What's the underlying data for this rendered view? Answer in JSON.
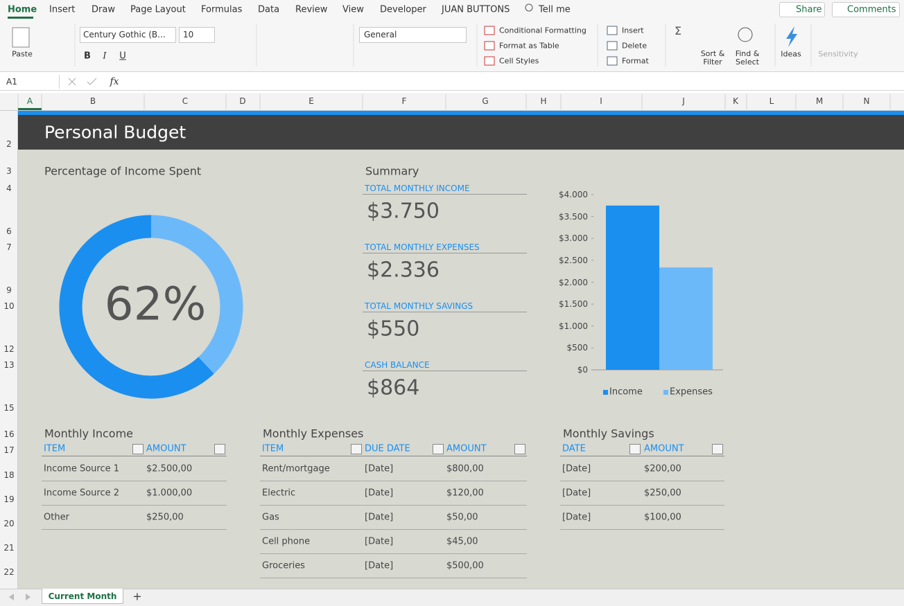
{
  "ribbon": {
    "tabs": [
      "Home",
      "Insert",
      "Draw",
      "Page Layout",
      "Formulas",
      "Data",
      "Review",
      "View",
      "Developer",
      "JUAN BUTTONS",
      "Tell me"
    ],
    "share": "Share",
    "comments": "Comments",
    "paste": "Paste",
    "font_name": "Century Gothic (B...",
    "font_size": "10",
    "bold": "B",
    "italic": "I",
    "underline": "U",
    "number_format": "General",
    "styles": [
      "Conditional Formatting",
      "Format as Table",
      "Cell Styles"
    ],
    "cells": [
      "Insert",
      "Delete",
      "Format"
    ],
    "sort_filter": "Sort & Filter",
    "find_select": "Find & Select",
    "ideas": "Ideas",
    "sensitivity": "Sensitivity"
  },
  "formula_bar": {
    "cell": "A1",
    "function_label": "fx"
  },
  "grid": {
    "columns": [
      "A",
      "B",
      "C",
      "D",
      "E",
      "F",
      "G",
      "H",
      "I",
      "J",
      "K",
      "L",
      "M",
      "N"
    ],
    "rows": [
      "2",
      "3",
      "4",
      "6",
      "7",
      "9",
      "10",
      "12",
      "13",
      "15",
      "16",
      "17",
      "18",
      "19",
      "20",
      "21",
      "22"
    ]
  },
  "sheet": {
    "title": "Personal Budget",
    "spent_chart": {
      "type": "donut",
      "title": "Percentage of Income Spent",
      "values": [
        62
      ],
      "value_labels": [
        "62%"
      ],
      "color": "#1a8ff0",
      "track_color": "#6cb9fa"
    },
    "summary": {
      "title": "Summary",
      "items": [
        {
          "label": "TOTAL MONTHLY INCOME",
          "value": "$3.750"
        },
        {
          "label": "TOTAL MONTHLY EXPENSES",
          "value": "$2.336"
        },
        {
          "label": "TOTAL MONTHLY SAVINGS",
          "value": "$550"
        },
        {
          "label": "CASH BALANCE",
          "value": "$864"
        }
      ]
    },
    "budget_chart": {
      "type": "bar",
      "series": [
        {
          "name": "Income",
          "color": "#1a8ff0",
          "values": [
            3750
          ]
        },
        {
          "name": "Expenses",
          "color": "#6cb9fa",
          "values": [
            2336
          ]
        }
      ],
      "ylim": [
        0,
        4000
      ],
      "yticks": [
        {
          "value": 0,
          "label": "$0"
        },
        {
          "value": 500,
          "label": "$500"
        },
        {
          "value": 1000,
          "label": "$1.000"
        },
        {
          "value": 1500,
          "label": "$1.500"
        },
        {
          "value": 2000,
          "label": "$2.000"
        },
        {
          "value": 2500,
          "label": "$2.500"
        },
        {
          "value": 3000,
          "label": "$3.000"
        },
        {
          "value": 3500,
          "label": "$3.500"
        },
        {
          "value": 4000,
          "label": "$4.000"
        }
      ]
    },
    "income": {
      "title": "Monthly Income",
      "headers": [
        "ITEM",
        "AMOUNT"
      ],
      "rows": [
        [
          "Income Source 1",
          "$2.500,00"
        ],
        [
          "Income Source 2",
          "$1.000,00"
        ],
        [
          "Other",
          "$250,00"
        ]
      ]
    },
    "expenses": {
      "title": "Monthly Expenses",
      "headers": [
        "ITEM",
        "DUE DATE",
        "AMOUNT"
      ],
      "rows": [
        [
          "Rent/mortgage",
          "[Date]",
          "$800,00"
        ],
        [
          "Electric",
          "[Date]",
          "$120,00"
        ],
        [
          "Gas",
          "[Date]",
          "$50,00"
        ],
        [
          "Cell phone",
          "[Date]",
          "$45,00"
        ],
        [
          "Groceries",
          "[Date]",
          "$500,00"
        ]
      ]
    },
    "savings": {
      "title": "Monthly Savings",
      "headers": [
        "DATE",
        "AMOUNT"
      ],
      "rows": [
        [
          "[Date]",
          "$200,00"
        ],
        [
          "[Date]",
          "$250,00"
        ],
        [
          "[Date]",
          "$100,00"
        ]
      ]
    }
  },
  "tabs": {
    "sheet": "Current Month",
    "add": "+"
  }
}
